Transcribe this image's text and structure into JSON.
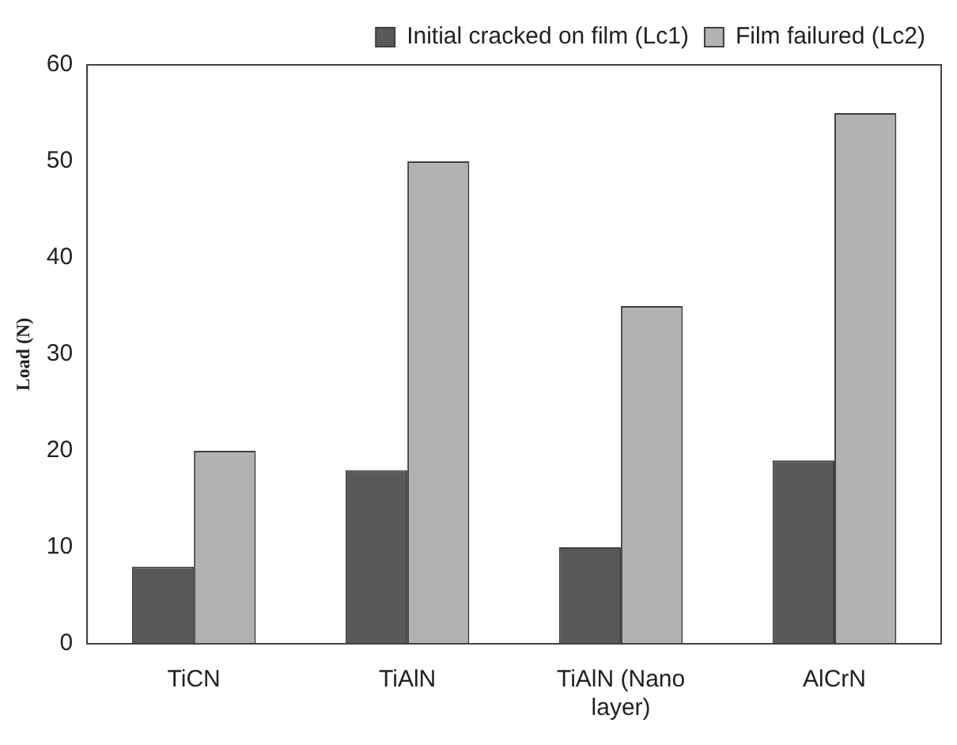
{
  "chart_data": {
    "type": "bar",
    "ylabel": "Load (N)",
    "categories": [
      "TiCN",
      "TiAlN",
      "TiAlN (Nano layer)",
      "AlCrN"
    ],
    "series": [
      {
        "name": "Initial cracked on film (Lc1)",
        "color": "#595959",
        "values": [
          8,
          18,
          10,
          19
        ]
      },
      {
        "name": "Film failured (Lc2)",
        "color": "#b2b2b2",
        "values": [
          20,
          50,
          35,
          55
        ]
      }
    ],
    "ylim": [
      0,
      60
    ],
    "yticks": [
      0,
      10,
      20,
      30,
      40,
      50,
      60
    ],
    "grid": false,
    "legend": "top right"
  }
}
